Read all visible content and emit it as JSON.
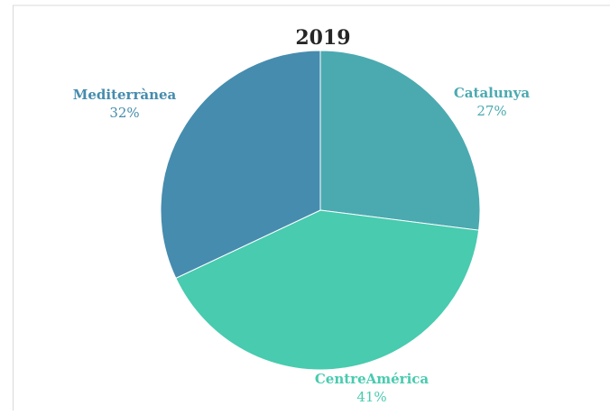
{
  "chart_data": {
    "type": "pie",
    "title": "2019",
    "slices": [
      {
        "label": "Catalunya",
        "value": 27,
        "percent_label": "27%",
        "color": "#4BAAB0",
        "label_color": "#4BAAB0"
      },
      {
        "label": "CentreAmérica",
        "value": 41,
        "percent_label": "41%",
        "color": "#48CBAF",
        "label_color": "#48CBAF"
      },
      {
        "label": "Mediterrànea",
        "value": 32,
        "percent_label": "32%",
        "color": "#468CAE",
        "label_color": "#468CAE"
      }
    ],
    "start_angle_deg": 0,
    "direction": "clockwise",
    "legend": "none"
  }
}
